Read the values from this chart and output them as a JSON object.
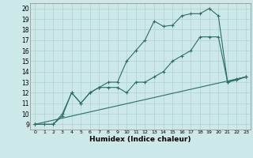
{
  "xlabel": "Humidex (Indice chaleur)",
  "bg_color": "#cce8e8",
  "grid_color": "#b0d0d0",
  "line_color": "#2d6e65",
  "xlim": [
    -0.5,
    23.5
  ],
  "ylim": [
    8.5,
    20.5
  ],
  "xticks": [
    0,
    1,
    2,
    3,
    4,
    5,
    6,
    7,
    8,
    9,
    10,
    11,
    12,
    13,
    14,
    15,
    16,
    17,
    18,
    19,
    20,
    21,
    22,
    23
  ],
  "yticks": [
    9,
    10,
    11,
    12,
    13,
    14,
    15,
    16,
    17,
    18,
    19,
    20
  ],
  "line1_x": [
    0,
    1,
    2,
    3,
    4,
    5,
    6,
    7,
    8,
    9,
    10,
    11,
    12,
    13,
    14,
    15,
    16,
    17,
    18,
    19,
    20,
    21,
    22,
    23
  ],
  "line1_y": [
    9,
    9,
    9,
    10,
    12,
    11,
    12,
    12.5,
    13,
    13,
    15,
    16,
    17,
    18.8,
    18.3,
    18.4,
    19.3,
    19.5,
    19.5,
    20.0,
    19.3,
    13.0,
    13.3,
    13.5
  ],
  "line2_x": [
    0,
    2,
    3,
    4,
    5,
    6,
    7,
    8,
    9,
    10,
    11,
    12,
    13,
    14,
    15,
    16,
    17,
    18,
    19,
    20,
    21,
    22,
    23
  ],
  "line2_y": [
    9,
    9,
    9.8,
    12,
    11,
    12,
    12.5,
    12.5,
    12.5,
    12,
    13,
    13,
    13.5,
    14,
    15,
    15.5,
    16,
    17.3,
    17.3,
    17.3,
    13.0,
    13.2,
    13.5
  ],
  "line3_x": [
    0,
    23
  ],
  "line3_y": [
    9,
    13.5
  ]
}
